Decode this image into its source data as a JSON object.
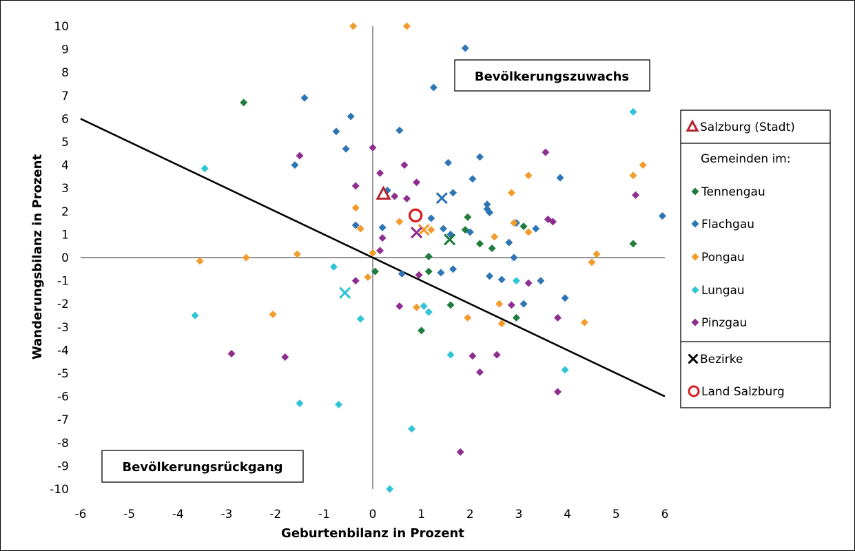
{
  "chart_data": {
    "type": "scatter",
    "xlabel": "Geburtenbilanz in Prozent",
    "ylabel": "Wanderungsbilanz in Prozent",
    "xlim": [
      -6,
      6
    ],
    "ylim": [
      -10,
      10
    ],
    "x_ticks": [
      -6,
      -5,
      -4,
      -3,
      -2,
      -1,
      0,
      1,
      2,
      3,
      4,
      5,
      6
    ],
    "y_ticks": [
      10,
      9,
      8,
      7,
      6,
      5,
      4,
      3,
      2,
      1,
      0,
      -1,
      -2,
      -3,
      -4,
      -5,
      -6,
      -7,
      -8,
      -9,
      -10
    ],
    "grid": false,
    "legend_position": "right",
    "reference_line": {
      "points": [
        [
          -6,
          6
        ],
        [
          6,
          -6
        ]
      ]
    },
    "annotations": [
      {
        "text": "Bevölkerungszuwachs",
        "position": "top-right"
      },
      {
        "text": "Bevölkerungsrückgang",
        "position": "bottom-left"
      }
    ],
    "legend": {
      "city_label": "Salzburg (Stadt)",
      "group_heading": "Gemeinden im:",
      "districts_label": "Bezirke",
      "state_label": "Land Salzburg"
    },
    "colors": {
      "Tennengau": "#1e7d3c",
      "Flachgau": "#2e75b6",
      "Pongau": "#f39c2c",
      "Lungau": "#2ec4d6",
      "Pinzgau": "#8e2e8e",
      "city": "#b5232f",
      "state": "#d42121",
      "line": "#000000"
    },
    "series": [
      {
        "name": "Tennengau",
        "points": [
          [
            -2.65,
            6.7
          ],
          [
            0.05,
            -0.6
          ],
          [
            1.0,
            -3.15
          ],
          [
            1.15,
            0.05
          ],
          [
            1.15,
            -0.6
          ],
          [
            1.6,
            -2.05
          ],
          [
            1.9,
            1.2
          ],
          [
            1.95,
            1.75
          ],
          [
            2.2,
            0.6
          ],
          [
            2.45,
            0.4
          ],
          [
            2.95,
            -2.6
          ],
          [
            3.1,
            1.35
          ],
          [
            5.35,
            0.6
          ]
        ]
      },
      {
        "name": "Flachgau",
        "points": [
          [
            -1.4,
            6.9
          ],
          [
            -1.6,
            4.0
          ],
          [
            -0.75,
            5.45
          ],
          [
            -0.55,
            4.7
          ],
          [
            -0.45,
            6.1
          ],
          [
            -0.35,
            1.4
          ],
          [
            0.2,
            1.3
          ],
          [
            0.3,
            2.9
          ],
          [
            0.55,
            5.5
          ],
          [
            0.6,
            -0.7
          ],
          [
            1.25,
            7.35
          ],
          [
            1.2,
            1.7
          ],
          [
            1.45,
            1.25
          ],
          [
            1.4,
            -0.65
          ],
          [
            1.55,
            4.1
          ],
          [
            1.6,
            1.0
          ],
          [
            1.65,
            2.8
          ],
          [
            1.65,
            -0.5
          ],
          [
            1.9,
            9.05
          ],
          [
            2.0,
            1.1
          ],
          [
            2.05,
            3.4
          ],
          [
            2.2,
            4.35
          ],
          [
            2.35,
            2.3
          ],
          [
            2.35,
            2.1
          ],
          [
            2.4,
            1.95
          ],
          [
            2.4,
            -0.8
          ],
          [
            2.65,
            -0.95
          ],
          [
            2.8,
            0.65
          ],
          [
            2.9,
            0.0
          ],
          [
            2.95,
            1.5
          ],
          [
            3.1,
            -2.0
          ],
          [
            3.35,
            1.25
          ],
          [
            3.45,
            -1.0
          ],
          [
            3.85,
            3.45
          ],
          [
            3.95,
            -1.75
          ],
          [
            5.95,
            1.8
          ]
        ]
      },
      {
        "name": "Pongau",
        "points": [
          [
            -3.55,
            -0.15
          ],
          [
            -2.6,
            0.0
          ],
          [
            -2.05,
            -2.45
          ],
          [
            -1.55,
            0.15
          ],
          [
            -0.4,
            10.0
          ],
          [
            -0.35,
            2.15
          ],
          [
            -0.25,
            1.25
          ],
          [
            -0.1,
            -0.85
          ],
          [
            0.0,
            0.2
          ],
          [
            0.55,
            1.55
          ],
          [
            0.7,
            10.0
          ],
          [
            0.9,
            -2.15
          ],
          [
            1.2,
            1.2
          ],
          [
            1.95,
            -2.6
          ],
          [
            2.5,
            0.9
          ],
          [
            2.6,
            -2.0
          ],
          [
            2.65,
            -2.85
          ],
          [
            2.85,
            2.8
          ],
          [
            2.9,
            1.5
          ],
          [
            3.2,
            3.55
          ],
          [
            3.2,
            1.1
          ],
          [
            4.35,
            -2.8
          ],
          [
            4.5,
            -0.2
          ],
          [
            4.6,
            0.15
          ],
          [
            5.35,
            3.55
          ],
          [
            5.55,
            4.0
          ]
        ]
      },
      {
        "name": "Lungau",
        "points": [
          [
            -3.45,
            3.85
          ],
          [
            -3.65,
            -2.5
          ],
          [
            -1.5,
            -6.3
          ],
          [
            -0.8,
            -0.4
          ],
          [
            -0.7,
            -6.35
          ],
          [
            -0.25,
            -2.65
          ],
          [
            0.35,
            -10.0
          ],
          [
            0.8,
            -7.4
          ],
          [
            1.05,
            -2.1
          ],
          [
            1.15,
            -2.35
          ],
          [
            1.6,
            -4.2
          ],
          [
            2.95,
            -1.0
          ],
          [
            3.95,
            -4.85
          ],
          [
            5.35,
            6.3
          ]
        ]
      },
      {
        "name": "Pinzgau",
        "points": [
          [
            -2.9,
            -4.15
          ],
          [
            -1.8,
            -4.3
          ],
          [
            -1.5,
            4.4
          ],
          [
            -0.35,
            3.1
          ],
          [
            -0.35,
            -1.0
          ],
          [
            0.0,
            4.75
          ],
          [
            0.15,
            3.65
          ],
          [
            0.15,
            0.3
          ],
          [
            0.2,
            0.85
          ],
          [
            0.45,
            2.65
          ],
          [
            0.55,
            -2.1
          ],
          [
            0.65,
            4.0
          ],
          [
            0.7,
            2.55
          ],
          [
            0.9,
            3.25
          ],
          [
            0.95,
            -0.75
          ],
          [
            2.05,
            -4.25
          ],
          [
            2.2,
            -4.95
          ],
          [
            2.55,
            -4.2
          ],
          [
            2.85,
            -2.05
          ],
          [
            3.2,
            -1.1
          ],
          [
            3.55,
            4.55
          ],
          [
            3.6,
            1.65
          ],
          [
            3.7,
            1.55
          ],
          [
            3.8,
            -2.6
          ],
          [
            3.8,
            -5.8
          ],
          [
            5.4,
            2.7
          ],
          [
            1.8,
            -8.4
          ]
        ]
      }
    ],
    "city_point": [
      0.22,
      2.75
    ],
    "state_point": [
      0.88,
      1.82
    ],
    "districts": [
      {
        "group": "Flachgau",
        "point": [
          1.42,
          2.57
        ]
      },
      {
        "group": "Tennengau",
        "point": [
          1.58,
          0.78
        ]
      },
      {
        "group": "Pongau",
        "point": [
          1.05,
          1.2
        ]
      },
      {
        "group": "Pinzgau",
        "point": [
          0.9,
          1.08
        ]
      },
      {
        "group": "Lungau",
        "point": [
          -0.57,
          -1.52
        ]
      }
    ]
  }
}
